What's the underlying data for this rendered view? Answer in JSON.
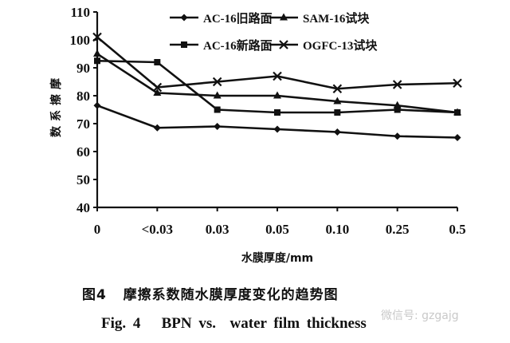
{
  "chart_data": {
    "type": "line",
    "title": "",
    "xlabel": "水膜厚度/mm",
    "ylabel": "摩擦系数",
    "categories": [
      "0",
      "<0.03",
      "0.03",
      "0.05",
      "0.10",
      "0.25",
      "0.5"
    ],
    "yticks": [
      40,
      50,
      60,
      70,
      80,
      90,
      100,
      110
    ],
    "ylim": [
      40,
      110
    ],
    "grid": false,
    "legend_position": "top-right, 2 columns",
    "series": [
      {
        "name": "AC-16旧路面",
        "marker": "diamond",
        "values": [
          76.5,
          68.5,
          69,
          68,
          67,
          65.5,
          65
        ]
      },
      {
        "name": "SAM-16试块",
        "marker": "triangle",
        "values": [
          95,
          81,
          80,
          80,
          78,
          76.5,
          74
        ]
      },
      {
        "name": "AC-16新路面",
        "marker": "square",
        "values": [
          92.5,
          92,
          75,
          74,
          74,
          75,
          74
        ]
      },
      {
        "name": "OGFC-13试块",
        "marker": "x",
        "values": [
          101,
          83,
          85,
          87,
          82.5,
          84,
          84.5
        ]
      }
    ]
  },
  "caption": {
    "cn": "图4   摩擦系数随水膜厚度变化的趋势图",
    "en": "Fig. 4   BPN vs.  water film thickness"
  },
  "watermark": "微信号: gzgajg"
}
